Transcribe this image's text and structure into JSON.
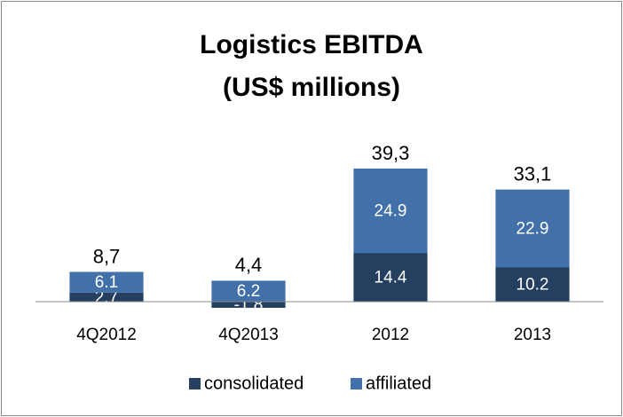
{
  "chart_data": {
    "type": "stacked_bar",
    "title": "Logistics EBITDA",
    "subtitle": "(US$ millions)",
    "categories": [
      "4Q2012",
      "4Q2013",
      "2012",
      "2013"
    ],
    "series": [
      {
        "name": "consolidated",
        "color": "#243f60",
        "values": [
          2.7,
          -1.8,
          14.4,
          10.2
        ]
      },
      {
        "name": "affiliated",
        "color": "#4270a8",
        "values": [
          6.1,
          6.2,
          24.9,
          22.9
        ]
      }
    ],
    "totals": [
      8.7,
      4.4,
      39.3,
      33.1
    ],
    "total_labels": [
      "8,7",
      "4,4",
      "39,3",
      "33,1"
    ],
    "ylim": [
      -3,
      42
    ],
    "legend": "bottom"
  }
}
